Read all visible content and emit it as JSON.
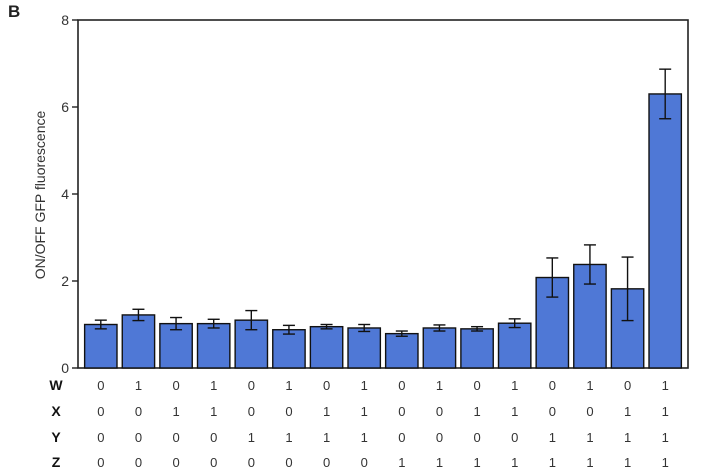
{
  "panel_label": "B",
  "chart_data": {
    "type": "bar",
    "ylabel": "ON/OFF GFP fluorescence",
    "ylim": [
      0,
      8
    ],
    "yticks": [
      0,
      2,
      4,
      6,
      8
    ],
    "bar_color": "#4f78d6",
    "values": [
      1.0,
      1.22,
      1.02,
      1.02,
      1.1,
      0.88,
      0.95,
      0.92,
      0.79,
      0.92,
      0.9,
      1.03,
      2.08,
      2.38,
      1.82,
      6.3
    ],
    "errors": [
      0.1,
      0.13,
      0.14,
      0.1,
      0.22,
      0.1,
      0.05,
      0.08,
      0.06,
      0.07,
      0.05,
      0.1,
      0.45,
      0.45,
      0.73,
      0.57
    ],
    "input_table": {
      "rows": [
        {
          "label": "W",
          "values": [
            "0",
            "1",
            "0",
            "1",
            "0",
            "1",
            "0",
            "1",
            "0",
            "1",
            "0",
            "1",
            "0",
            "1",
            "0",
            "1"
          ]
        },
        {
          "label": "X",
          "values": [
            "0",
            "0",
            "1",
            "1",
            "0",
            "0",
            "1",
            "1",
            "0",
            "0",
            "1",
            "1",
            "0",
            "0",
            "1",
            "1"
          ]
        },
        {
          "label": "Y",
          "values": [
            "0",
            "0",
            "0",
            "0",
            "1",
            "1",
            "1",
            "1",
            "0",
            "0",
            "0",
            "0",
            "1",
            "1",
            "1",
            "1"
          ]
        },
        {
          "label": "Z",
          "values": [
            "0",
            "0",
            "0",
            "0",
            "0",
            "0",
            "0",
            "0",
            "1",
            "1",
            "1",
            "1",
            "1",
            "1",
            "1",
            "1"
          ]
        }
      ]
    }
  }
}
